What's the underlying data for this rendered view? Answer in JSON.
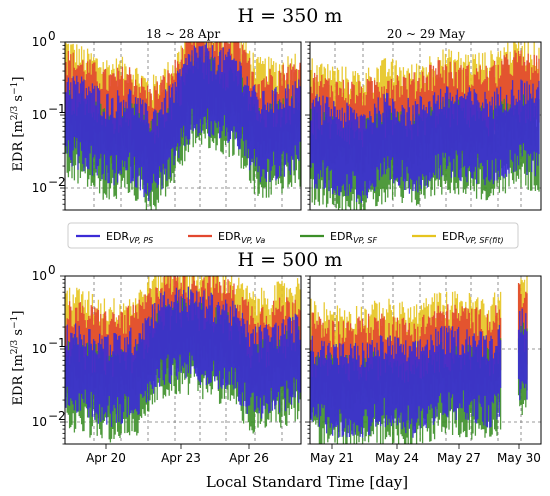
{
  "figure": {
    "xlabel": "Local Standard Time [day]",
    "ylabel": "EDR [m^2/3 s^-1]"
  },
  "legend": {
    "placement": "between-rows",
    "entries": [
      {
        "label_main": "EDR",
        "label_sub": "VP, PS",
        "color": "#3b2bd6"
      },
      {
        "label_main": "EDR",
        "label_sub": "VP, Va",
        "color": "#e2472f"
      },
      {
        "label_main": "EDR",
        "label_sub": "VP, SF",
        "color": "#3c8f28"
      },
      {
        "label_main": "EDR",
        "label_sub": "VP, SF(fit)",
        "color": "#e6c41f"
      }
    ]
  },
  "chart_data": [
    {
      "type": "area",
      "row_title": "H = 350 m",
      "panel_title": "18 ~ 28 Apr",
      "yscale": "log",
      "ylim": [
        0.005,
        1
      ],
      "yticks": [
        "10^-2",
        "10^-1",
        "10^0"
      ],
      "xticks": [],
      "series": [
        {
          "name": "EDRVP,PS",
          "values": [
            0.1,
            0.08,
            0.05,
            0.06,
            0.03,
            0.07,
            0.25,
            0.22,
            0.18,
            0.05,
            0.06,
            0.08
          ]
        },
        {
          "name": "EDRVP,Va",
          "values": [
            0.2,
            0.15,
            0.1,
            0.12,
            0.06,
            0.12,
            0.4,
            0.35,
            0.3,
            0.1,
            0.12,
            0.15
          ]
        },
        {
          "name": "EDRVP,SF",
          "values": [
            0.06,
            0.05,
            0.03,
            0.04,
            0.02,
            0.05,
            0.18,
            0.15,
            0.12,
            0.03,
            0.04,
            0.05
          ]
        },
        {
          "name": "EDRVP,SF(fit)",
          "values": [
            0.3,
            0.2,
            0.15,
            0.15,
            0.08,
            0.15,
            0.5,
            0.45,
            0.4,
            0.15,
            0.15,
            0.2
          ]
        }
      ]
    },
    {
      "type": "area",
      "panel_title": "20 ~ 29 May",
      "yscale": "log",
      "ylim": [
        0.005,
        1
      ],
      "xticks": [],
      "series": [
        {
          "name": "EDRVP,PS",
          "values": [
            0.05,
            0.04,
            0.03,
            0.05,
            0.04,
            0.06,
            0.06,
            0.05,
            0.08,
            0.07
          ]
        },
        {
          "name": "EDRVP,Va",
          "values": [
            0.1,
            0.08,
            0.07,
            0.1,
            0.09,
            0.15,
            0.12,
            0.12,
            0.2,
            0.15
          ]
        },
        {
          "name": "EDRVP,SF",
          "values": [
            0.03,
            0.025,
            0.02,
            0.03,
            0.025,
            0.04,
            0.04,
            0.03,
            0.05,
            0.04
          ]
        },
        {
          "name": "EDRVP,SF(fit)",
          "values": [
            0.15,
            0.12,
            0.1,
            0.15,
            0.12,
            0.2,
            0.18,
            0.18,
            0.3,
            0.25
          ]
        }
      ]
    },
    {
      "type": "area",
      "row_title": "H = 500 m",
      "yscale": "log",
      "ylim": [
        0.005,
        1
      ],
      "yticks": [
        "10^-2",
        "10^-1",
        "10^0"
      ],
      "xticks": [
        "Apr 20",
        "Apr 23",
        "Apr 26"
      ],
      "series": [
        {
          "name": "EDRVP,PS",
          "values": [
            0.06,
            0.05,
            0.04,
            0.05,
            0.15,
            0.18,
            0.15,
            0.12,
            0.05,
            0.06,
            0.08
          ]
        },
        {
          "name": "EDRVP,Va",
          "values": [
            0.12,
            0.1,
            0.08,
            0.1,
            0.25,
            0.3,
            0.28,
            0.22,
            0.1,
            0.12,
            0.15
          ]
        },
        {
          "name": "EDRVP,SF",
          "values": [
            0.04,
            0.03,
            0.025,
            0.03,
            0.1,
            0.12,
            0.1,
            0.08,
            0.03,
            0.04,
            0.05
          ]
        },
        {
          "name": "EDRVP,SF(fit)",
          "values": [
            0.2,
            0.15,
            0.12,
            0.15,
            0.35,
            0.4,
            0.35,
            0.3,
            0.15,
            0.2,
            0.25
          ]
        }
      ]
    },
    {
      "type": "area",
      "yscale": "log",
      "ylim": [
        0.005,
        1
      ],
      "xticks": [
        "May 21",
        "May 24",
        "May 27",
        "May 30"
      ],
      "series": [
        {
          "name": "EDRVP,PS",
          "values": [
            0.04,
            0.03,
            0.03,
            0.04,
            0.03,
            0.05,
            0.05,
            0.04,
            0.1,
            0.08
          ]
        },
        {
          "name": "EDRVP,Va",
          "values": [
            0.08,
            0.06,
            0.07,
            0.08,
            0.06,
            0.1,
            0.1,
            0.08,
            0.2,
            0.15
          ]
        },
        {
          "name": "EDRVP,SF",
          "values": [
            0.025,
            0.02,
            0.02,
            0.025,
            0.02,
            0.03,
            0.03,
            0.025,
            0.06,
            0.05
          ]
        },
        {
          "name": "EDRVP,SF(fit)",
          "values": [
            0.12,
            0.1,
            0.1,
            0.12,
            0.1,
            0.15,
            0.15,
            0.12,
            0.3,
            0.25
          ]
        }
      ]
    }
  ]
}
